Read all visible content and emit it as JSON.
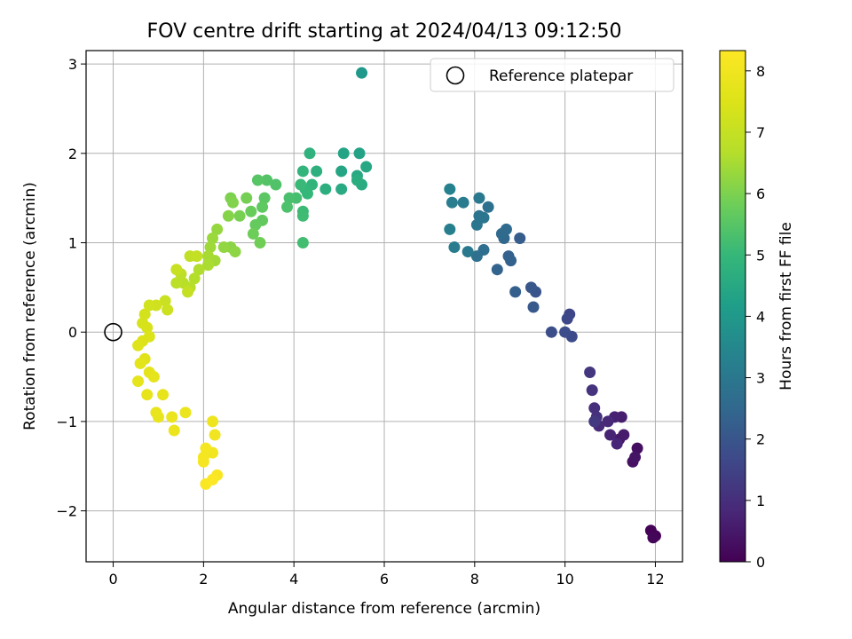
{
  "chart_data": {
    "type": "scatter",
    "title": "FOV centre drift starting at 2024/04/13 09:12:50",
    "xlabel": "Angular distance from reference (arcmin)",
    "ylabel": "Rotation from reference (arcmin)",
    "xlim": [
      -0.6,
      12.6
    ],
    "ylim": [
      -2.57,
      3.15
    ],
    "xticks": [
      0,
      2,
      4,
      6,
      8,
      10,
      12
    ],
    "yticks": [
      -2,
      -1,
      0,
      1,
      2,
      3
    ],
    "grid": true,
    "legend": {
      "position": "top-right",
      "entries": [
        "Reference platepar"
      ]
    },
    "reference_point": {
      "x": 0,
      "y": 0,
      "label": "Reference platepar"
    },
    "colorbar": {
      "label": "Hours from first FF file",
      "colormap": "viridis",
      "range": [
        0,
        8.33
      ],
      "ticks": [
        0,
        1,
        2,
        3,
        4,
        5,
        6,
        7,
        8
      ]
    },
    "points": [
      [
        12.0,
        -2.28,
        0.0
      ],
      [
        11.9,
        -2.22,
        0.05
      ],
      [
        11.95,
        -2.3,
        0.1
      ],
      [
        11.6,
        -1.3,
        0.3
      ],
      [
        11.5,
        -1.45,
        0.35
      ],
      [
        11.55,
        -1.4,
        0.4
      ],
      [
        11.2,
        -1.2,
        0.5
      ],
      [
        11.3,
        -1.15,
        0.55
      ],
      [
        11.25,
        -0.95,
        0.6
      ],
      [
        11.1,
        -0.95,
        0.7
      ],
      [
        11.0,
        -1.15,
        0.75
      ],
      [
        11.15,
        -1.25,
        0.8
      ],
      [
        10.95,
        -1.0,
        0.85
      ],
      [
        10.75,
        -1.05,
        0.9
      ],
      [
        10.65,
        -0.85,
        1.0
      ],
      [
        10.7,
        -0.95,
        1.05
      ],
      [
        10.6,
        -0.65,
        1.1
      ],
      [
        10.55,
        -0.45,
        1.2
      ],
      [
        10.65,
        -1.0,
        1.25
      ],
      [
        10.1,
        0.2,
        1.6
      ],
      [
        10.05,
        0.15,
        1.65
      ],
      [
        10.15,
        -0.05,
        1.7
      ],
      [
        10.0,
        0.0,
        1.75
      ],
      [
        9.7,
        0.0,
        1.8
      ],
      [
        9.35,
        0.45,
        2.0
      ],
      [
        9.25,
        0.5,
        2.05
      ],
      [
        9.3,
        0.28,
        2.1
      ],
      [
        9.0,
        1.05,
        2.2
      ],
      [
        8.9,
        0.45,
        2.25
      ],
      [
        8.75,
        0.85,
        2.3
      ],
      [
        8.8,
        0.8,
        2.35
      ],
      [
        8.5,
        0.7,
        2.4
      ],
      [
        8.65,
        1.05,
        2.5
      ],
      [
        8.7,
        1.15,
        2.55
      ],
      [
        8.6,
        1.1,
        2.6
      ],
      [
        8.2,
        0.92,
        2.7
      ],
      [
        8.05,
        0.85,
        2.75
      ],
      [
        8.3,
        1.4,
        2.8
      ],
      [
        8.1,
        1.3,
        2.85
      ],
      [
        8.2,
        1.28,
        2.9
      ],
      [
        8.05,
        1.2,
        2.95
      ],
      [
        7.85,
        0.9,
        3.0
      ],
      [
        8.1,
        1.5,
        3.05
      ],
      [
        7.75,
        1.45,
        3.1
      ],
      [
        7.55,
        0.95,
        3.15
      ],
      [
        7.5,
        1.45,
        3.2
      ],
      [
        7.45,
        1.15,
        3.25
      ],
      [
        7.45,
        1.6,
        3.3
      ],
      [
        5.5,
        2.9,
        4.0
      ],
      [
        5.45,
        2.0,
        4.3
      ],
      [
        5.1,
        2.0,
        4.35
      ],
      [
        5.05,
        1.8,
        4.4
      ],
      [
        5.6,
        1.85,
        4.45
      ],
      [
        5.4,
        1.75,
        4.5
      ],
      [
        5.05,
        1.6,
        4.55
      ],
      [
        5.5,
        1.65,
        4.6
      ],
      [
        5.4,
        1.7,
        4.65
      ],
      [
        4.7,
        1.6,
        4.7
      ],
      [
        4.5,
        1.8,
        4.75
      ],
      [
        4.35,
        2.0,
        4.8
      ],
      [
        4.4,
        1.65,
        4.85
      ],
      [
        4.2,
        1.8,
        4.9
      ],
      [
        4.25,
        1.6,
        4.95
      ],
      [
        4.3,
        1.55,
        5.0
      ],
      [
        4.15,
        1.65,
        5.05
      ],
      [
        4.2,
        1.35,
        5.1
      ],
      [
        4.2,
        1.3,
        5.15
      ],
      [
        4.2,
        1.0,
        5.2
      ],
      [
        4.05,
        1.5,
        5.25
      ],
      [
        3.9,
        1.5,
        5.3
      ],
      [
        3.85,
        1.4,
        5.35
      ],
      [
        3.6,
        1.65,
        5.4
      ],
      [
        3.4,
        1.7,
        5.45
      ],
      [
        3.2,
        1.7,
        5.5
      ],
      [
        3.35,
        1.5,
        5.55
      ],
      [
        3.3,
        1.4,
        5.6
      ],
      [
        3.3,
        1.25,
        5.65
      ],
      [
        3.15,
        1.2,
        5.7
      ],
      [
        3.05,
        1.35,
        5.75
      ],
      [
        3.1,
        1.1,
        5.8
      ],
      [
        3.25,
        1.0,
        5.85
      ],
      [
        2.95,
        1.5,
        5.9
      ],
      [
        2.8,
        1.3,
        5.95
      ],
      [
        2.6,
        1.5,
        6.0
      ],
      [
        2.65,
        1.45,
        6.05
      ],
      [
        2.55,
        1.3,
        6.1
      ],
      [
        2.6,
        0.95,
        6.15
      ],
      [
        2.7,
        0.9,
        6.2
      ],
      [
        2.45,
        0.95,
        6.25
      ],
      [
        2.3,
        1.15,
        6.3
      ],
      [
        2.2,
        1.05,
        6.35
      ],
      [
        2.15,
        0.95,
        6.4
      ],
      [
        2.25,
        0.8,
        6.45
      ],
      [
        2.1,
        0.85,
        6.5
      ],
      [
        2.1,
        0.75,
        6.55
      ],
      [
        1.9,
        0.7,
        6.6
      ],
      [
        1.8,
        0.6,
        6.65
      ],
      [
        1.7,
        0.5,
        6.7
      ],
      [
        1.55,
        0.55,
        6.75
      ],
      [
        1.4,
        0.55,
        6.8
      ],
      [
        1.5,
        0.65,
        6.85
      ],
      [
        1.7,
        0.85,
        6.9
      ],
      [
        1.85,
        0.85,
        6.95
      ],
      [
        1.65,
        0.45,
        7.0
      ],
      [
        1.4,
        0.7,
        7.05
      ],
      [
        1.15,
        0.35,
        7.1
      ],
      [
        1.2,
        0.25,
        7.15
      ],
      [
        0.95,
        0.3,
        7.2
      ],
      [
        0.8,
        0.3,
        7.25
      ],
      [
        0.7,
        0.2,
        7.3
      ],
      [
        0.65,
        0.1,
        7.35
      ],
      [
        0.75,
        0.05,
        7.4
      ],
      [
        0.8,
        -0.05,
        7.45
      ],
      [
        0.65,
        -0.1,
        7.5
      ],
      [
        0.55,
        -0.15,
        7.55
      ],
      [
        0.7,
        -0.3,
        7.6
      ],
      [
        0.6,
        -0.35,
        7.65
      ],
      [
        0.8,
        -0.45,
        7.7
      ],
      [
        0.55,
        -0.55,
        7.72
      ],
      [
        0.9,
        -0.5,
        7.74
      ],
      [
        0.75,
        -0.7,
        7.76
      ],
      [
        1.1,
        -0.7,
        7.78
      ],
      [
        0.95,
        -0.9,
        7.8
      ],
      [
        1.0,
        -0.95,
        7.82
      ],
      [
        1.3,
        -0.95,
        7.84
      ],
      [
        1.6,
        -0.9,
        7.86
      ],
      [
        1.35,
        -1.1,
        7.88
      ],
      [
        2.2,
        -1.0,
        7.95
      ],
      [
        2.25,
        -1.15,
        8.0
      ],
      [
        2.2,
        -1.35,
        8.05
      ],
      [
        2.0,
        -1.4,
        8.1
      ],
      [
        2.05,
        -1.3,
        8.12
      ],
      [
        2.0,
        -1.45,
        8.15
      ],
      [
        2.3,
        -1.6,
        8.2
      ],
      [
        2.05,
        -1.7,
        8.25
      ],
      [
        2.2,
        -1.65,
        8.3
      ]
    ]
  }
}
